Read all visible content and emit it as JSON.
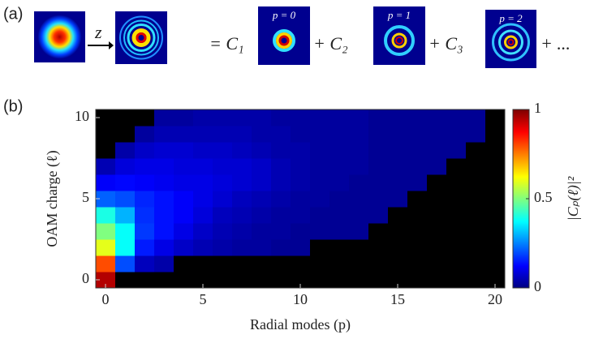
{
  "panel_a": {
    "label": "(a)",
    "propagation": "z",
    "terms": [
      "= C₁",
      "+ C₂",
      "+ C₃",
      "+ ..."
    ],
    "mode_labels": [
      "p = 0",
      "p = 1",
      "p = 2"
    ]
  },
  "chart_data": {
    "type": "heatmap",
    "panel_label": "(b)",
    "xlabel": "Radial modes (p)",
    "ylabel": "OAM charge (ℓ)",
    "colorbar_label": "|Cₚ(ℓ)|²",
    "x": [
      0,
      1,
      2,
      3,
      4,
      5,
      6,
      7,
      8,
      9,
      10,
      11,
      12,
      13,
      14,
      15,
      16,
      17,
      18,
      19,
      20
    ],
    "y": [
      0,
      1,
      2,
      3,
      4,
      5,
      6,
      7,
      8,
      9,
      10
    ],
    "values": [
      [
        0.95,
        0,
        0,
        0,
        0,
        0,
        0,
        0,
        0,
        0,
        0,
        0,
        0,
        0,
        0,
        0,
        0,
        0,
        0,
        0,
        0
      ],
      [
        0.8,
        0.2,
        0.06,
        0.04,
        0,
        0,
        0,
        0,
        0,
        0,
        0,
        0,
        0,
        0,
        0,
        0,
        0,
        0,
        0,
        0,
        0
      ],
      [
        0.6,
        0.38,
        0.15,
        0.1,
        0.07,
        0.05,
        0.04,
        0.03,
        0.03,
        0.02,
        0.02,
        0,
        0,
        0,
        0,
        0,
        0,
        0,
        0,
        0,
        0
      ],
      [
        0.5,
        0.38,
        0.18,
        0.14,
        0.1,
        0.07,
        0.05,
        0.04,
        0.03,
        0.03,
        0.02,
        0.02,
        0.02,
        0.02,
        0,
        0,
        0,
        0,
        0,
        0,
        0
      ],
      [
        0.4,
        0.3,
        0.17,
        0.14,
        0.12,
        0.09,
        0.06,
        0.05,
        0.04,
        0.03,
        0.03,
        0.02,
        0.02,
        0.02,
        0.02,
        0,
        0,
        0,
        0,
        0,
        0
      ],
      [
        0.22,
        0.2,
        0.16,
        0.14,
        0.12,
        0.1,
        0.08,
        0.06,
        0.05,
        0.04,
        0.03,
        0.03,
        0.02,
        0.02,
        0.02,
        0.02,
        0,
        0,
        0,
        0,
        0
      ],
      [
        0.12,
        0.13,
        0.12,
        0.11,
        0.1,
        0.1,
        0.09,
        0.08,
        0.07,
        0.05,
        0.04,
        0.03,
        0.03,
        0.02,
        0.02,
        0.02,
        0.02,
        0,
        0,
        0,
        0
      ],
      [
        0.05,
        0.09,
        0.1,
        0.1,
        0.09,
        0.09,
        0.08,
        0.08,
        0.07,
        0.05,
        0.04,
        0.03,
        0.03,
        0.03,
        0.02,
        0.02,
        0.02,
        0.02,
        0,
        0,
        0
      ],
      [
        0,
        0.04,
        0.07,
        0.08,
        0.08,
        0.07,
        0.07,
        0.06,
        0.05,
        0.04,
        0.04,
        0.03,
        0.03,
        0.03,
        0.02,
        0.02,
        0.02,
        0.02,
        0.02,
        0,
        0
      ],
      [
        0,
        0,
        0.03,
        0.05,
        0.05,
        0.05,
        0.05,
        0.05,
        0.04,
        0.04,
        0.03,
        0.03,
        0.03,
        0.03,
        0.02,
        0.02,
        0.02,
        0.02,
        0.02,
        0.02,
        0
      ],
      [
        0,
        0,
        0,
        0.03,
        0.03,
        0.04,
        0.04,
        0.04,
        0.04,
        0.03,
        0.03,
        0.03,
        0.03,
        0.03,
        0.02,
        0.02,
        0.02,
        0.02,
        0.02,
        0.02,
        0
      ]
    ],
    "xlim": [
      -0.5,
      20.5
    ],
    "ylim": [
      -0.5,
      10.5
    ],
    "xticks": [
      0,
      5,
      10,
      15,
      20
    ],
    "yticks": [
      0,
      5,
      10
    ],
    "clim": [
      0,
      1
    ],
    "cticks": [
      0,
      0.5,
      1
    ],
    "colormap": "jet"
  }
}
